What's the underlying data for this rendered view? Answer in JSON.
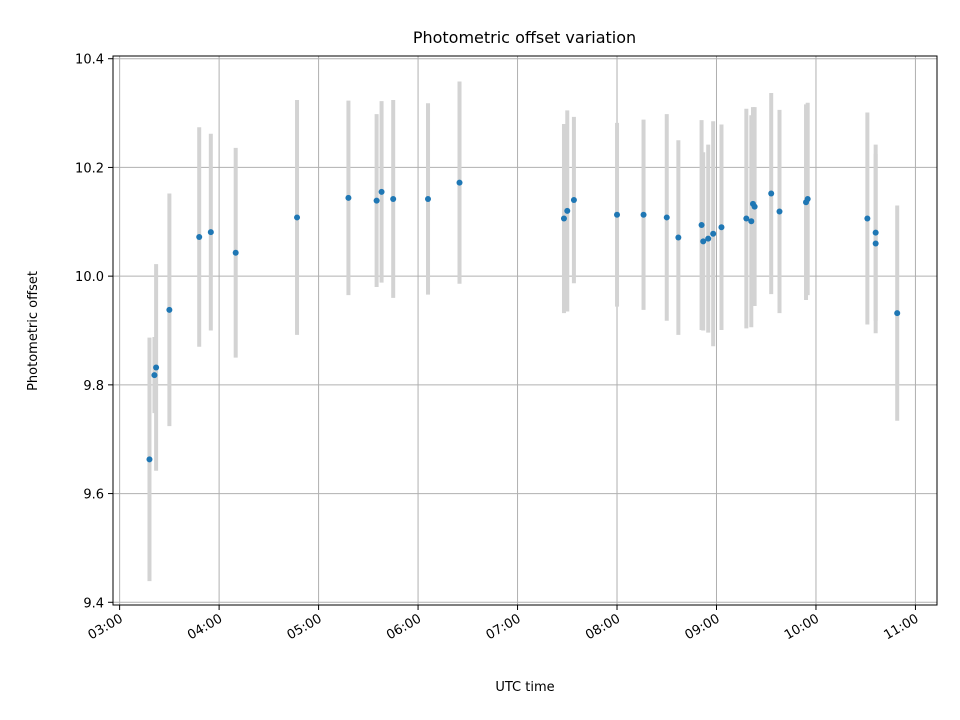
{
  "chart_data": {
    "type": "scatter",
    "title": "Photometric offset variation",
    "xlabel": "UTC time",
    "ylabel": "Photometric offset",
    "xlim": [
      "02:56",
      "11:13"
    ],
    "ylim": [
      9.395,
      10.405
    ],
    "x_ticks": [
      "03:00",
      "04:00",
      "05:00",
      "06:00",
      "07:00",
      "08:00",
      "09:00",
      "10:00",
      "11:00"
    ],
    "y_ticks": [
      "9.4",
      "9.6",
      "9.8",
      "10.0",
      "10.2",
      "10.4"
    ],
    "grid": true,
    "colors": {
      "point": "#1f77b4",
      "errorbar": "#d3d3d3",
      "grid": "#b0b0b0"
    },
    "points": [
      {
        "x": "03:18",
        "y": 9.663,
        "err": 0.224
      },
      {
        "x": "03:21",
        "y": 9.818,
        "err": 0.07
      },
      {
        "x": "03:22",
        "y": 9.832,
        "err": 0.19
      },
      {
        "x": "03:30",
        "y": 9.938,
        "err": 0.214
      },
      {
        "x": "03:48",
        "y": 10.072,
        "err": 0.202
      },
      {
        "x": "03:55",
        "y": 10.081,
        "err": 0.181
      },
      {
        "x": "04:10",
        "y": 10.043,
        "err": 0.193
      },
      {
        "x": "04:47",
        "y": 10.108,
        "err": 0.216
      },
      {
        "x": "05:18",
        "y": 10.144,
        "err": 0.179
      },
      {
        "x": "05:35",
        "y": 10.139,
        "err": 0.159
      },
      {
        "x": "05:38",
        "y": 10.155,
        "err": 0.167
      },
      {
        "x": "05:45",
        "y": 10.142,
        "err": 0.182
      },
      {
        "x": "06:06",
        "y": 10.142,
        "err": 0.176
      },
      {
        "x": "06:25",
        "y": 10.172,
        "err": 0.186
      },
      {
        "x": "07:28",
        "y": 10.106,
        "err": 0.174
      },
      {
        "x": "07:30",
        "y": 10.12,
        "err": 0.185
      },
      {
        "x": "07:34",
        "y": 10.14,
        "err": 0.153
      },
      {
        "x": "08:00",
        "y": 10.113,
        "err": 0.169
      },
      {
        "x": "08:16",
        "y": 10.113,
        "err": 0.175
      },
      {
        "x": "08:30",
        "y": 10.108,
        "err": 0.19
      },
      {
        "x": "08:37",
        "y": 10.071,
        "err": 0.179
      },
      {
        "x": "08:51",
        "y": 10.094,
        "err": 0.193
      },
      {
        "x": "08:52",
        "y": 10.064,
        "err": 0.164
      },
      {
        "x": "08:55",
        "y": 10.069,
        "err": 0.173
      },
      {
        "x": "08:58",
        "y": 10.078,
        "err": 0.207
      },
      {
        "x": "09:03",
        "y": 10.09,
        "err": 0.189
      },
      {
        "x": "09:18",
        "y": 10.106,
        "err": 0.202
      },
      {
        "x": "09:21",
        "y": 10.101,
        "err": 0.195
      },
      {
        "x": "09:22",
        "y": 10.133,
        "err": 0.178
      },
      {
        "x": "09:23",
        "y": 10.128,
        "err": 0.183
      },
      {
        "x": "09:33",
        "y": 10.152,
        "err": 0.185
      },
      {
        "x": "09:38",
        "y": 10.119,
        "err": 0.187
      },
      {
        "x": "09:54",
        "y": 10.136,
        "err": 0.18
      },
      {
        "x": "09:55",
        "y": 10.142,
        "err": 0.177
      },
      {
        "x": "10:31",
        "y": 10.106,
        "err": 0.195
      },
      {
        "x": "10:36",
        "y": 10.08,
        "err": 0.162
      },
      {
        "x": "10:36",
        "y": 10.06,
        "err": 0.165
      },
      {
        "x": "10:49",
        "y": 9.932,
        "err": 0.198
      }
    ]
  }
}
